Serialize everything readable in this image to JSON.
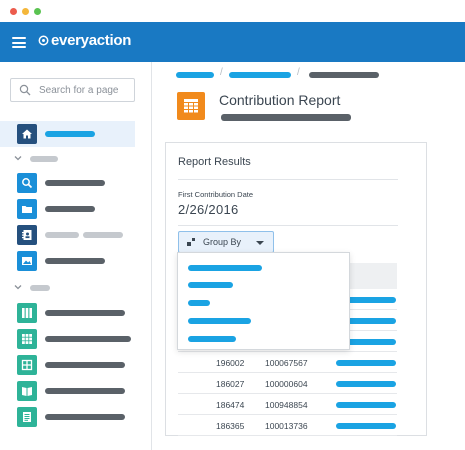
{
  "app": {
    "logo_text": "everyaction"
  },
  "search": {
    "placeholder": "Search for a page"
  },
  "page": {
    "title": "Contribution Report"
  },
  "report": {
    "card_title": "Report Results",
    "field_label": "First Contribution Date",
    "field_value": "2/26/2016",
    "group_by_label": "Group By",
    "rows": [
      {
        "id": "196002",
        "number": "100067567"
      },
      {
        "id": "186027",
        "number": "100000604"
      },
      {
        "id": "186474",
        "number": "100948854"
      },
      {
        "id": "186365",
        "number": "100013736"
      }
    ]
  },
  "colors": {
    "brand_blue": "#1979c3",
    "accent_cyan": "#1aa3e3",
    "page_icon_orange": "#f18a1c",
    "nav_icon_blue": "#1a8fd8",
    "nav_icon_teal": "#2eb398",
    "nav_icon_navy": "#25507e"
  },
  "icons": {
    "home": "home-icon",
    "search": "search-icon",
    "folder": "folder-icon",
    "contacts": "contact-card-icon",
    "image": "image-icon",
    "columns": "columns-icon",
    "grid": "grid-icon",
    "dashboard": "dashboard-icon",
    "book": "book-icon",
    "list": "list-icon",
    "report": "spreadsheet-icon"
  }
}
